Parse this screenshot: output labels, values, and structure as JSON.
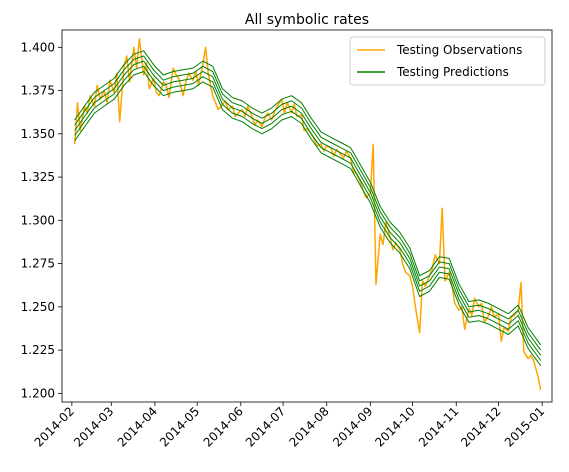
{
  "chart_data": {
    "type": "line",
    "title": "All symbolic rates",
    "xlabel": "",
    "ylabel": "",
    "x_ticks": [
      "2014-02",
      "2014-03",
      "2014-04",
      "2014-05",
      "2014-06",
      "2014-07",
      "2014-08",
      "2014-09",
      "2014-10",
      "2014-11",
      "2014-12",
      "2015-01"
    ],
    "y_ticks": [
      "1.200",
      "1.225",
      "1.250",
      "1.275",
      "1.300",
      "1.325",
      "1.350",
      "1.375",
      "1.400"
    ],
    "xlim": [
      "2014-01-25",
      "2015-01-08"
    ],
    "ylim": [
      1.195,
      1.41
    ],
    "grid": false,
    "legend_position": "top-right",
    "series": [
      {
        "name": "Testing Observations",
        "color": "#ffa500",
        "role": "observations",
        "points": [
          [
            "2014-02-03",
            1.344
          ],
          [
            "2014-02-05",
            1.368
          ],
          [
            "2014-02-07",
            1.352
          ],
          [
            "2014-02-10",
            1.366
          ],
          [
            "2014-02-12",
            1.362
          ],
          [
            "2014-02-14",
            1.372
          ],
          [
            "2014-02-17",
            1.366
          ],
          [
            "2014-02-19",
            1.378
          ],
          [
            "2014-02-21",
            1.37
          ],
          [
            "2014-02-24",
            1.375
          ],
          [
            "2014-02-26",
            1.368
          ],
          [
            "2014-02-28",
            1.381
          ],
          [
            "2014-03-03",
            1.374
          ],
          [
            "2014-03-05",
            1.385
          ],
          [
            "2014-03-07",
            1.357
          ],
          [
            "2014-03-10",
            1.389
          ],
          [
            "2014-03-12",
            1.395
          ],
          [
            "2014-03-14",
            1.38
          ],
          [
            "2014-03-17",
            1.4
          ],
          [
            "2014-03-19",
            1.388
          ],
          [
            "2014-03-21",
            1.405
          ],
          [
            "2014-03-24",
            1.384
          ],
          [
            "2014-03-26",
            1.391
          ],
          [
            "2014-03-28",
            1.376
          ],
          [
            "2014-03-31",
            1.382
          ],
          [
            "2014-04-02",
            1.374
          ],
          [
            "2014-04-04",
            1.372
          ],
          [
            "2014-04-07",
            1.38
          ],
          [
            "2014-04-09",
            1.378
          ],
          [
            "2014-04-11",
            1.371
          ],
          [
            "2014-04-14",
            1.388
          ],
          [
            "2014-04-16",
            1.384
          ],
          [
            "2014-04-18",
            1.382
          ],
          [
            "2014-04-21",
            1.372
          ],
          [
            "2014-04-23",
            1.38
          ],
          [
            "2014-04-25",
            1.385
          ],
          [
            "2014-04-28",
            1.381
          ],
          [
            "2014-04-30",
            1.386
          ],
          [
            "2014-05-02",
            1.378
          ],
          [
            "2014-05-05",
            1.39
          ],
          [
            "2014-05-07",
            1.4
          ],
          [
            "2014-05-09",
            1.384
          ],
          [
            "2014-05-12",
            1.372
          ],
          [
            "2014-05-14",
            1.368
          ],
          [
            "2014-05-16",
            1.364
          ],
          [
            "2014-05-19",
            1.367
          ],
          [
            "2014-05-21",
            1.369
          ],
          [
            "2014-05-23",
            1.364
          ],
          [
            "2014-05-26",
            1.366
          ],
          [
            "2014-05-28",
            1.36
          ],
          [
            "2014-05-30",
            1.362
          ],
          [
            "2014-06-02",
            1.364
          ],
          [
            "2014-06-04",
            1.36
          ],
          [
            "2014-06-06",
            1.366
          ],
          [
            "2014-06-09",
            1.36
          ],
          [
            "2014-06-11",
            1.355
          ],
          [
            "2014-06-13",
            1.358
          ],
          [
            "2014-06-16",
            1.354
          ],
          [
            "2014-06-18",
            1.359
          ],
          [
            "2014-06-20",
            1.362
          ],
          [
            "2014-06-23",
            1.358
          ],
          [
            "2014-06-25",
            1.363
          ],
          [
            "2014-06-27",
            1.366
          ],
          [
            "2014-06-30",
            1.37
          ],
          [
            "2014-07-02",
            1.362
          ],
          [
            "2014-07-04",
            1.368
          ],
          [
            "2014-07-07",
            1.362
          ],
          [
            "2014-07-09",
            1.367
          ],
          [
            "2014-07-11",
            1.36
          ],
          [
            "2014-07-14",
            1.361
          ],
          [
            "2014-07-16",
            1.352
          ],
          [
            "2014-07-18",
            1.353
          ],
          [
            "2014-07-21",
            1.35
          ],
          [
            "2014-07-23",
            1.347
          ],
          [
            "2014-07-25",
            1.343
          ],
          [
            "2014-07-28",
            1.344
          ],
          [
            "2014-07-30",
            1.34
          ],
          [
            "2014-08-01",
            1.343
          ],
          [
            "2014-08-04",
            1.342
          ],
          [
            "2014-08-06",
            1.337
          ],
          [
            "2014-08-08",
            1.341
          ],
          [
            "2014-08-11",
            1.338
          ],
          [
            "2014-08-13",
            1.336
          ],
          [
            "2014-08-15",
            1.34
          ],
          [
            "2014-08-18",
            1.336
          ],
          [
            "2014-08-20",
            1.328
          ],
          [
            "2014-08-22",
            1.327
          ],
          [
            "2014-08-25",
            1.322
          ],
          [
            "2014-08-27",
            1.317
          ],
          [
            "2014-08-29",
            1.313
          ],
          [
            "2014-09-01",
            1.316
          ],
          [
            "2014-09-03",
            1.344
          ],
          [
            "2014-09-05",
            1.263
          ],
          [
            "2014-09-08",
            1.292
          ],
          [
            "2014-09-10",
            1.286
          ],
          [
            "2014-09-12",
            1.299
          ],
          [
            "2014-09-15",
            1.29
          ],
          [
            "2014-09-17",
            1.283
          ],
          [
            "2014-09-19",
            1.287
          ],
          [
            "2014-09-22",
            1.283
          ],
          [
            "2014-09-24",
            1.275
          ],
          [
            "2014-09-26",
            1.27
          ],
          [
            "2014-09-29",
            1.268
          ],
          [
            "2014-10-01",
            1.262
          ],
          [
            "2014-10-03",
            1.25
          ],
          [
            "2014-10-06",
            1.235
          ],
          [
            "2014-10-08",
            1.265
          ],
          [
            "2014-10-10",
            1.262
          ],
          [
            "2014-10-13",
            1.268
          ],
          [
            "2014-10-15",
            1.272
          ],
          [
            "2014-10-17",
            1.28
          ],
          [
            "2014-10-20",
            1.275
          ],
          [
            "2014-10-22",
            1.307
          ],
          [
            "2014-10-24",
            1.265
          ],
          [
            "2014-10-27",
            1.27
          ],
          [
            "2014-10-29",
            1.262
          ],
          [
            "2014-10-31",
            1.252
          ],
          [
            "2014-11-03",
            1.248
          ],
          [
            "2014-11-05",
            1.25
          ],
          [
            "2014-11-07",
            1.237
          ],
          [
            "2014-11-10",
            1.249
          ],
          [
            "2014-11-12",
            1.245
          ],
          [
            "2014-11-14",
            1.255
          ],
          [
            "2014-11-17",
            1.25
          ],
          [
            "2014-11-19",
            1.252
          ],
          [
            "2014-11-21",
            1.241
          ],
          [
            "2014-11-24",
            1.245
          ],
          [
            "2014-11-26",
            1.25
          ],
          [
            "2014-11-28",
            1.244
          ],
          [
            "2014-12-01",
            1.246
          ],
          [
            "2014-12-03",
            1.23
          ],
          [
            "2014-12-05",
            1.238
          ],
          [
            "2014-12-08",
            1.236
          ],
          [
            "2014-12-10",
            1.244
          ],
          [
            "2014-12-12",
            1.245
          ],
          [
            "2014-12-15",
            1.248
          ],
          [
            "2014-12-17",
            1.264
          ],
          [
            "2014-12-19",
            1.224
          ],
          [
            "2014-12-22",
            1.22
          ],
          [
            "2014-12-24",
            1.222
          ],
          [
            "2014-12-26",
            1.219
          ],
          [
            "2014-12-29",
            1.21
          ],
          [
            "2014-12-31",
            1.202
          ]
        ]
      },
      {
        "name": "Testing Predictions",
        "color": "#008000",
        "role": "predictions",
        "band_offsets": [
          -0.006,
          -0.003,
          0.0,
          0.003,
          0.006
        ],
        "points": [
          [
            "2014-02-03",
            1.352
          ],
          [
            "2014-02-10",
            1.36
          ],
          [
            "2014-02-17",
            1.368
          ],
          [
            "2014-02-24",
            1.372
          ],
          [
            "2014-03-03",
            1.376
          ],
          [
            "2014-03-10",
            1.384
          ],
          [
            "2014-03-17",
            1.39
          ],
          [
            "2014-03-24",
            1.392
          ],
          [
            "2014-03-31",
            1.384
          ],
          [
            "2014-04-07",
            1.378
          ],
          [
            "2014-04-14",
            1.38
          ],
          [
            "2014-04-21",
            1.381
          ],
          [
            "2014-04-28",
            1.382
          ],
          [
            "2014-05-05",
            1.386
          ],
          [
            "2014-05-12",
            1.383
          ],
          [
            "2014-05-19",
            1.37
          ],
          [
            "2014-05-26",
            1.365
          ],
          [
            "2014-06-02",
            1.363
          ],
          [
            "2014-06-09",
            1.359
          ],
          [
            "2014-06-16",
            1.356
          ],
          [
            "2014-06-23",
            1.359
          ],
          [
            "2014-06-30",
            1.364
          ],
          [
            "2014-07-07",
            1.366
          ],
          [
            "2014-07-14",
            1.362
          ],
          [
            "2014-07-21",
            1.353
          ],
          [
            "2014-07-28",
            1.345
          ],
          [
            "2014-08-04",
            1.342
          ],
          [
            "2014-08-11",
            1.339
          ],
          [
            "2014-08-18",
            1.336
          ],
          [
            "2014-08-25",
            1.326
          ],
          [
            "2014-09-01",
            1.316
          ],
          [
            "2014-09-08",
            1.302
          ],
          [
            "2014-09-15",
            1.293
          ],
          [
            "2014-09-22",
            1.287
          ],
          [
            "2014-09-29",
            1.278
          ],
          [
            "2014-10-06",
            1.262
          ],
          [
            "2014-10-13",
            1.265
          ],
          [
            "2014-10-20",
            1.273
          ],
          [
            "2014-10-27",
            1.272
          ],
          [
            "2014-11-03",
            1.257
          ],
          [
            "2014-11-10",
            1.247
          ],
          [
            "2014-11-17",
            1.248
          ],
          [
            "2014-11-24",
            1.246
          ],
          [
            "2014-12-01",
            1.243
          ],
          [
            "2014-12-08",
            1.24
          ],
          [
            "2014-12-15",
            1.245
          ],
          [
            "2014-12-22",
            1.232
          ],
          [
            "2014-12-31",
            1.222
          ]
        ]
      }
    ]
  }
}
